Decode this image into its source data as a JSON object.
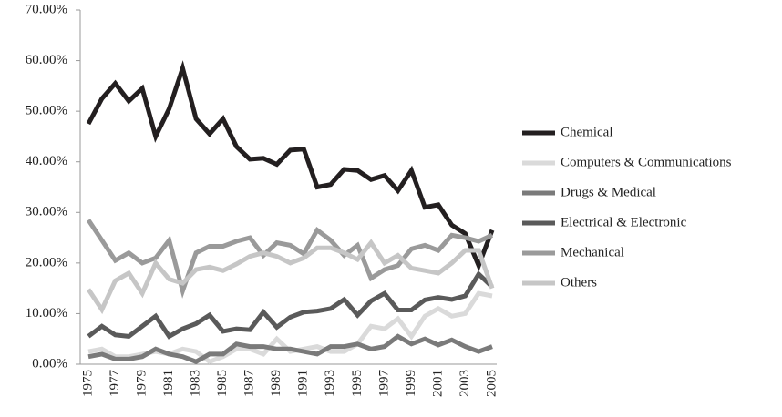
{
  "chart_data": {
    "type": "line",
    "categories": [
      "1975",
      null,
      "1977",
      null,
      "1979",
      null,
      "1981",
      null,
      "1983",
      null,
      "1985",
      null,
      "1987",
      null,
      "1989",
      null,
      "1991",
      null,
      "1993",
      null,
      "1995",
      null,
      "1997",
      null,
      "1999",
      null,
      "2001",
      null,
      "2003",
      null,
      "2005"
    ],
    "ylim": [
      0,
      70
    ],
    "yticks": [
      {
        "value": 0,
        "label": "0.00%"
      },
      {
        "value": 10,
        "label": "10.00%"
      },
      {
        "value": 20,
        "label": "20.00%"
      },
      {
        "value": 30,
        "label": "30.00%"
      },
      {
        "value": 40,
        "label": "40.00%"
      },
      {
        "value": 50,
        "label": "50.00%"
      },
      {
        "value": 60,
        "label": "60.00%"
      },
      {
        "value": 70,
        "label": "70.00%"
      }
    ],
    "grid": false,
    "legend": "right",
    "series": [
      {
        "name": "Chemical",
        "color": "#231f20",
        "values": [
          47.5,
          52.5,
          55.5,
          52,
          54.5,
          45,
          50.5,
          58.5,
          48.5,
          45.5,
          48.5,
          43,
          40.5,
          40.7,
          39.5,
          42.3,
          42.5,
          35,
          35.5,
          38.5,
          38.3,
          36.5,
          37.3,
          34.3,
          38.3,
          31,
          31.5,
          27.5,
          25.8,
          19.5,
          26.5
        ]
      },
      {
        "name": "Computers & Communications",
        "color": "#dadada",
        "values": [
          2.5,
          3,
          1.5,
          1.5,
          2,
          2.5,
          2,
          3,
          2.5,
          0.5,
          1.5,
          3,
          3,
          2,
          5,
          2.5,
          3,
          3.5,
          2.5,
          2.5,
          4,
          7.5,
          7,
          9,
          5.5,
          9.5,
          11,
          9.5,
          10,
          14,
          13.5
        ]
      },
      {
        "name": "Drugs & Medical",
        "color": "#7a7a7a",
        "values": [
          1.5,
          2,
          1,
          1,
          1.5,
          3,
          2,
          1.5,
          0.5,
          2,
          2,
          4,
          3.5,
          3.5,
          3,
          3,
          2.5,
          2,
          3.5,
          3.5,
          4,
          3,
          3.5,
          5.5,
          4,
          5,
          3.8,
          4.8,
          3.5,
          2.5,
          3.5
        ]
      },
      {
        "name": "Electrical & Electronic",
        "color": "#5a5a5a",
        "values": [
          5.5,
          7.5,
          5.8,
          5.5,
          7.5,
          9.5,
          5.5,
          7,
          8,
          9.7,
          6.5,
          7,
          6.8,
          10.3,
          7.3,
          9.3,
          10.3,
          10.5,
          11,
          12.8,
          9.7,
          12.5,
          14,
          10.7,
          10.7,
          12.7,
          13.2,
          12.8,
          13.5,
          17.8,
          15.3
        ]
      },
      {
        "name": "Mechanical",
        "color": "#9a9a9a",
        "values": [
          28.5,
          24.5,
          20.5,
          22,
          20,
          21,
          24.5,
          14.5,
          22,
          23.3,
          23.3,
          24.3,
          25,
          21.5,
          24,
          23.5,
          21.8,
          26.5,
          24.5,
          21.5,
          23.5,
          17,
          18.7,
          19.5,
          22.8,
          23.5,
          22.5,
          25.5,
          25,
          24.3,
          25.5
        ]
      },
      {
        "name": "Others",
        "color": "#c6c6c6",
        "values": [
          14.8,
          10.8,
          16.5,
          18,
          14,
          20,
          16.8,
          16,
          18.7,
          19.2,
          18.5,
          19.8,
          21.3,
          22,
          21.3,
          20,
          21,
          23,
          23,
          22,
          20.7,
          24,
          20,
          21.5,
          19,
          18.5,
          18,
          20,
          22.5,
          22.5,
          15
        ]
      }
    ]
  }
}
